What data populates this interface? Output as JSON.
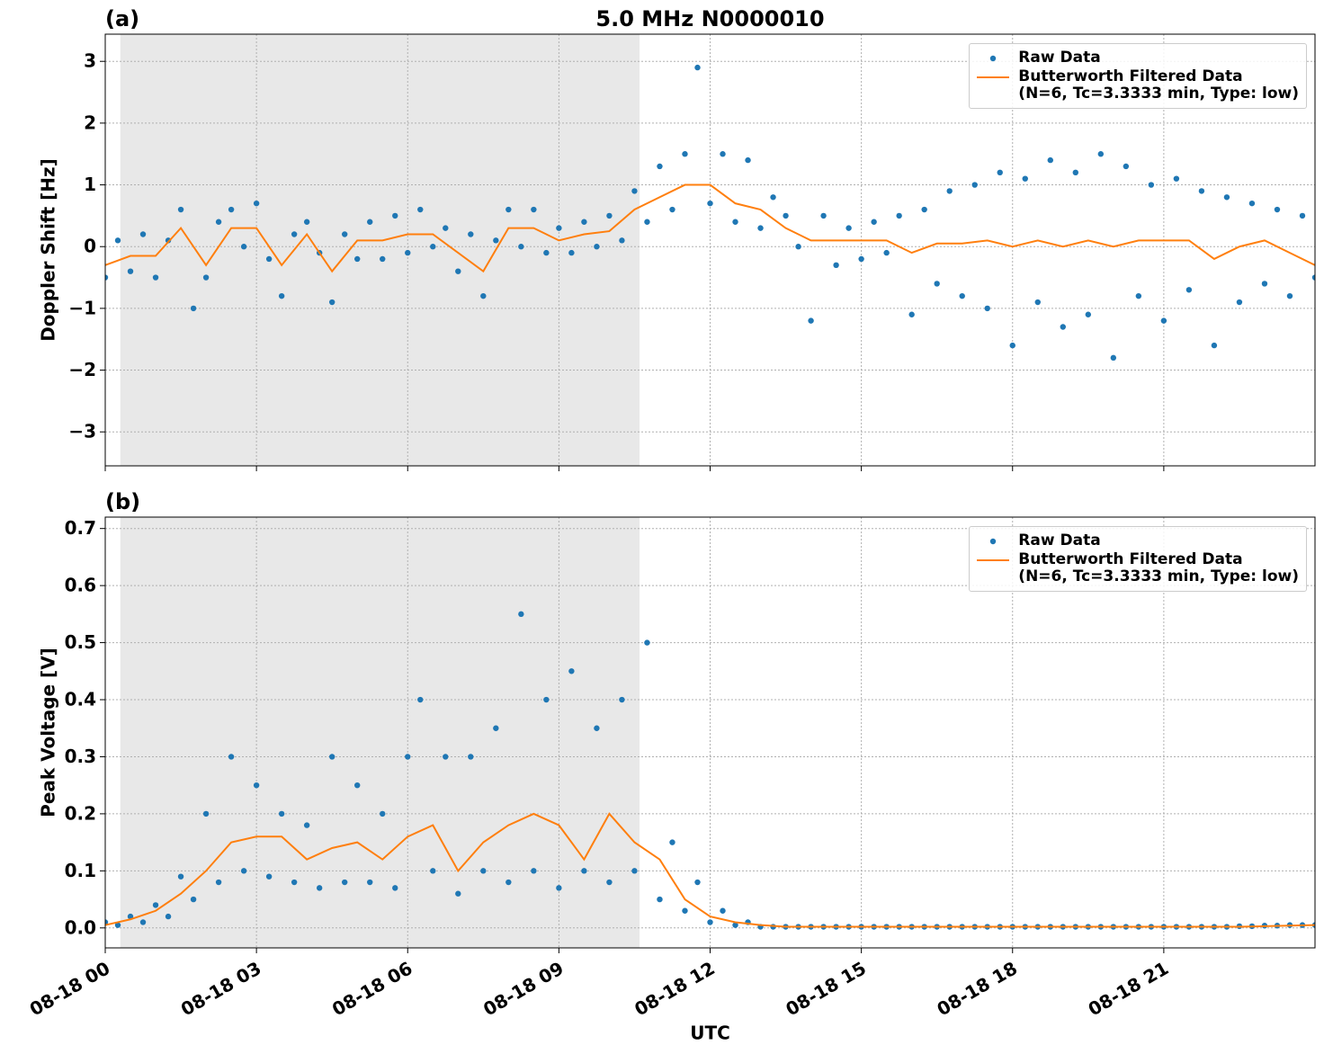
{
  "chart_data": [
    {
      "type": "line",
      "panel_label": "(a)",
      "title": "5.0 MHz N0000010",
      "ylabel": "Doppler Shift [Hz]",
      "xlim": [
        0,
        24
      ],
      "ylim": [
        -3.55,
        3.44
      ],
      "xticks": [
        0,
        3,
        6,
        9,
        12,
        15,
        18,
        21
      ],
      "yticks": [
        {
          "value": -3,
          "label": "−3"
        },
        {
          "value": -2,
          "label": "−2"
        },
        {
          "value": -1,
          "label": "−1"
        },
        0,
        1,
        2,
        3
      ],
      "grid": true,
      "legend": "upper right",
      "shade": [
        0.3,
        10.6
      ],
      "shade_color": "#e8e8e8",
      "series": [
        {
          "name": "Raw Data",
          "kind": "scatter",
          "color": "#1f77b4",
          "x": [
            0,
            0.25,
            0.5,
            0.75,
            1,
            1.25,
            1.5,
            1.75,
            2,
            2.25,
            2.5,
            2.75,
            3,
            3.25,
            3.5,
            3.75,
            4,
            4.25,
            4.5,
            4.75,
            5,
            5.25,
            5.5,
            5.75,
            6,
            6.25,
            6.5,
            6.75,
            7,
            7.25,
            7.5,
            7.75,
            8,
            8.25,
            8.5,
            8.75,
            9,
            9.25,
            9.5,
            9.75,
            10,
            10.25,
            10.5,
            10.75,
            11,
            11.25,
            11.5,
            11.75,
            12,
            12.25,
            12.5,
            12.75,
            13,
            13.25,
            13.5,
            13.75,
            14,
            14.25,
            14.5,
            14.75,
            15,
            15.25,
            15.5,
            15.75,
            16,
            16.25,
            16.5,
            16.75,
            17,
            17.25,
            17.5,
            17.75,
            18,
            18.25,
            18.5,
            18.75,
            19,
            19.25,
            19.5,
            19.75,
            20,
            20.25,
            20.5,
            20.75,
            21,
            21.25,
            21.5,
            21.75,
            22,
            22.25,
            22.5,
            22.75,
            23,
            23.25,
            23.5,
            23.75,
            24
          ],
          "values": [
            -0.5,
            0.1,
            -0.4,
            0.2,
            -0.5,
            0.1,
            0.6,
            -1.0,
            -0.5,
            0.4,
            0.6,
            0,
            0.7,
            -0.2,
            -0.8,
            0.2,
            0.4,
            -0.1,
            -0.9,
            0.2,
            -0.2,
            0.4,
            -0.2,
            0.5,
            -0.1,
            0.6,
            0,
            0.3,
            -0.4,
            0.2,
            -0.8,
            0.1,
            0.6,
            0,
            0.6,
            -0.1,
            0.3,
            -0.1,
            0.4,
            0,
            0.5,
            0.1,
            0.9,
            0.4,
            1.3,
            0.6,
            1.5,
            2.9,
            0.7,
            1.5,
            0.4,
            1.4,
            0.3,
            0.8,
            0.5,
            0,
            -1.2,
            0.5,
            -0.3,
            0.3,
            -0.2,
            0.4,
            -0.1,
            0.5,
            -1.1,
            0.6,
            -0.6,
            0.9,
            -0.8,
            1.0,
            -1.0,
            1.2,
            -1.6,
            1.1,
            -0.9,
            1.4,
            -1.3,
            1.2,
            -1.1,
            1.5,
            -1.8,
            1.3,
            -0.8,
            1.0,
            -1.2,
            1.1,
            -0.7,
            0.9,
            -1.6,
            0.8,
            -0.9,
            0.7,
            -0.6,
            0.6,
            -0.8,
            0.5,
            -0.5
          ]
        },
        {
          "name": "Butterworth Filtered Data\n(N=6, Tc=3.3333 min, Type: low)",
          "kind": "line",
          "color": "#ff7f0e",
          "x": [
            0,
            0.5,
            1,
            1.5,
            2,
            2.5,
            3,
            3.5,
            4,
            4.5,
            5,
            5.5,
            6,
            6.5,
            7,
            7.5,
            8,
            8.5,
            9,
            9.5,
            10,
            10.5,
            11,
            11.5,
            12,
            12.5,
            13,
            13.5,
            14,
            14.5,
            15,
            15.5,
            16,
            16.5,
            17,
            17.5,
            18,
            18.5,
            19,
            19.5,
            20,
            20.5,
            21,
            21.5,
            22,
            22.5,
            23,
            23.5,
            24
          ],
          "values": [
            -0.3,
            -0.15,
            -0.15,
            0.3,
            -0.3,
            0.3,
            0.3,
            -0.3,
            0.2,
            -0.4,
            0.1,
            0.1,
            0.2,
            0.2,
            -0.1,
            -0.4,
            0.3,
            0.3,
            0.1,
            0.2,
            0.25,
            0.6,
            0.8,
            1.0,
            1.0,
            0.7,
            0.6,
            0.3,
            0.1,
            0.1,
            0.1,
            0.1,
            -0.1,
            0.05,
            0.05,
            0.1,
            0,
            0.1,
            0,
            0.1,
            0,
            0.1,
            0.1,
            0.1,
            -0.2,
            0,
            0.1,
            -0.1,
            -0.3
          ]
        }
      ]
    },
    {
      "type": "line",
      "panel_label": "(b)",
      "ylabel": "Peak Voltage [V]",
      "xlabel": "UTC",
      "xlim": [
        0,
        24
      ],
      "ylim": [
        -0.035,
        0.72
      ],
      "xticks": [
        {
          "value": 0,
          "label": "08-18 00"
        },
        {
          "value": 3,
          "label": "08-18 03"
        },
        {
          "value": 6,
          "label": "08-18 06"
        },
        {
          "value": 9,
          "label": "08-18 09"
        },
        {
          "value": 12,
          "label": "08-18 12"
        },
        {
          "value": 15,
          "label": "08-18 15"
        },
        {
          "value": 18,
          "label": "08-18 18"
        },
        {
          "value": 21,
          "label": "08-18 21"
        }
      ],
      "yticks": [
        {
          "value": 0,
          "label": "0.0"
        },
        0.1,
        0.2,
        0.3,
        0.4,
        0.5,
        0.6,
        0.7
      ],
      "grid": true,
      "legend": "upper right",
      "shade": [
        0.3,
        10.6
      ],
      "shade_color": "#e8e8e8",
      "series": [
        {
          "name": "Raw Data",
          "kind": "scatter",
          "color": "#1f77b4",
          "x": [
            0,
            0.25,
            0.5,
            0.75,
            1,
            1.25,
            1.5,
            1.75,
            2,
            2.25,
            2.5,
            2.75,
            3,
            3.25,
            3.5,
            3.75,
            4,
            4.25,
            4.5,
            4.75,
            5,
            5.25,
            5.5,
            5.75,
            6,
            6.25,
            6.5,
            6.75,
            7,
            7.25,
            7.5,
            7.75,
            8,
            8.25,
            8.5,
            8.75,
            9,
            9.25,
            9.5,
            9.75,
            10,
            10.25,
            10.5,
            10.75,
            11,
            11.25,
            11.5,
            11.75,
            12,
            12.25,
            12.5,
            12.75,
            13,
            13.25,
            13.5,
            13.75,
            14,
            14.25,
            14.5,
            14.75,
            15,
            15.25,
            15.5,
            15.75,
            16,
            16.25,
            16.5,
            16.75,
            17,
            17.25,
            17.5,
            17.75,
            18,
            18.25,
            18.5,
            18.75,
            19,
            19.25,
            19.5,
            19.75,
            20,
            20.25,
            20.5,
            20.75,
            21,
            21.25,
            21.5,
            21.75,
            22,
            22.25,
            22.5,
            22.75,
            23,
            23.25,
            23.5,
            23.75,
            24
          ],
          "values": [
            0.01,
            0.005,
            0.02,
            0.01,
            0.04,
            0.02,
            0.09,
            0.05,
            0.2,
            0.08,
            0.3,
            0.1,
            0.25,
            0.09,
            0.2,
            0.08,
            0.18,
            0.07,
            0.3,
            0.08,
            0.25,
            0.08,
            0.2,
            0.07,
            0.3,
            0.4,
            0.1,
            0.3,
            0.06,
            0.3,
            0.1,
            0.35,
            0.08,
            0.55,
            0.1,
            0.4,
            0.07,
            0.45,
            0.1,
            0.35,
            0.08,
            0.4,
            0.1,
            0.5,
            0.05,
            0.15,
            0.03,
            0.08,
            0.01,
            0.03,
            0.005,
            0.01,
            0.002,
            0.002,
            0.002,
            0.002,
            0.002,
            0.002,
            0.002,
            0.002,
            0.002,
            0.002,
            0.002,
            0.002,
            0.002,
            0.002,
            0.002,
            0.002,
            0.002,
            0.002,
            0.002,
            0.002,
            0.002,
            0.002,
            0.002,
            0.002,
            0.002,
            0.002,
            0.002,
            0.002,
            0.002,
            0.002,
            0.002,
            0.002,
            0.002,
            0.002,
            0.002,
            0.002,
            0.002,
            0.002,
            0.003,
            0.003,
            0.004,
            0.004,
            0.005,
            0.005,
            0.005
          ]
        },
        {
          "name": "Butterworth Filtered Data\n(N=6, Tc=3.3333 min, Type: low)",
          "kind": "line",
          "color": "#ff7f0e",
          "x": [
            0,
            0.5,
            1,
            1.5,
            2,
            2.5,
            3,
            3.5,
            4,
            4.5,
            5,
            5.5,
            6,
            6.5,
            7,
            7.5,
            8,
            8.5,
            9,
            9.5,
            10,
            10.5,
            11,
            11.5,
            12,
            12.5,
            13,
            13.5,
            14,
            14.5,
            15,
            15.5,
            16,
            16.5,
            17,
            17.5,
            18,
            18.5,
            19,
            19.5,
            20,
            20.5,
            21,
            21.5,
            22,
            22.5,
            23,
            23.5,
            24
          ],
          "values": [
            0.005,
            0.015,
            0.03,
            0.06,
            0.1,
            0.15,
            0.16,
            0.16,
            0.12,
            0.14,
            0.15,
            0.12,
            0.16,
            0.18,
            0.1,
            0.15,
            0.18,
            0.2,
            0.18,
            0.12,
            0.2,
            0.15,
            0.12,
            0.05,
            0.02,
            0.01,
            0.005,
            0.002,
            0.002,
            0.002,
            0.002,
            0.002,
            0.002,
            0.002,
            0.002,
            0.002,
            0.002,
            0.002,
            0.002,
            0.002,
            0.002,
            0.002,
            0.002,
            0.002,
            0.002,
            0.002,
            0.003,
            0.004,
            0.005
          ]
        }
      ]
    }
  ]
}
